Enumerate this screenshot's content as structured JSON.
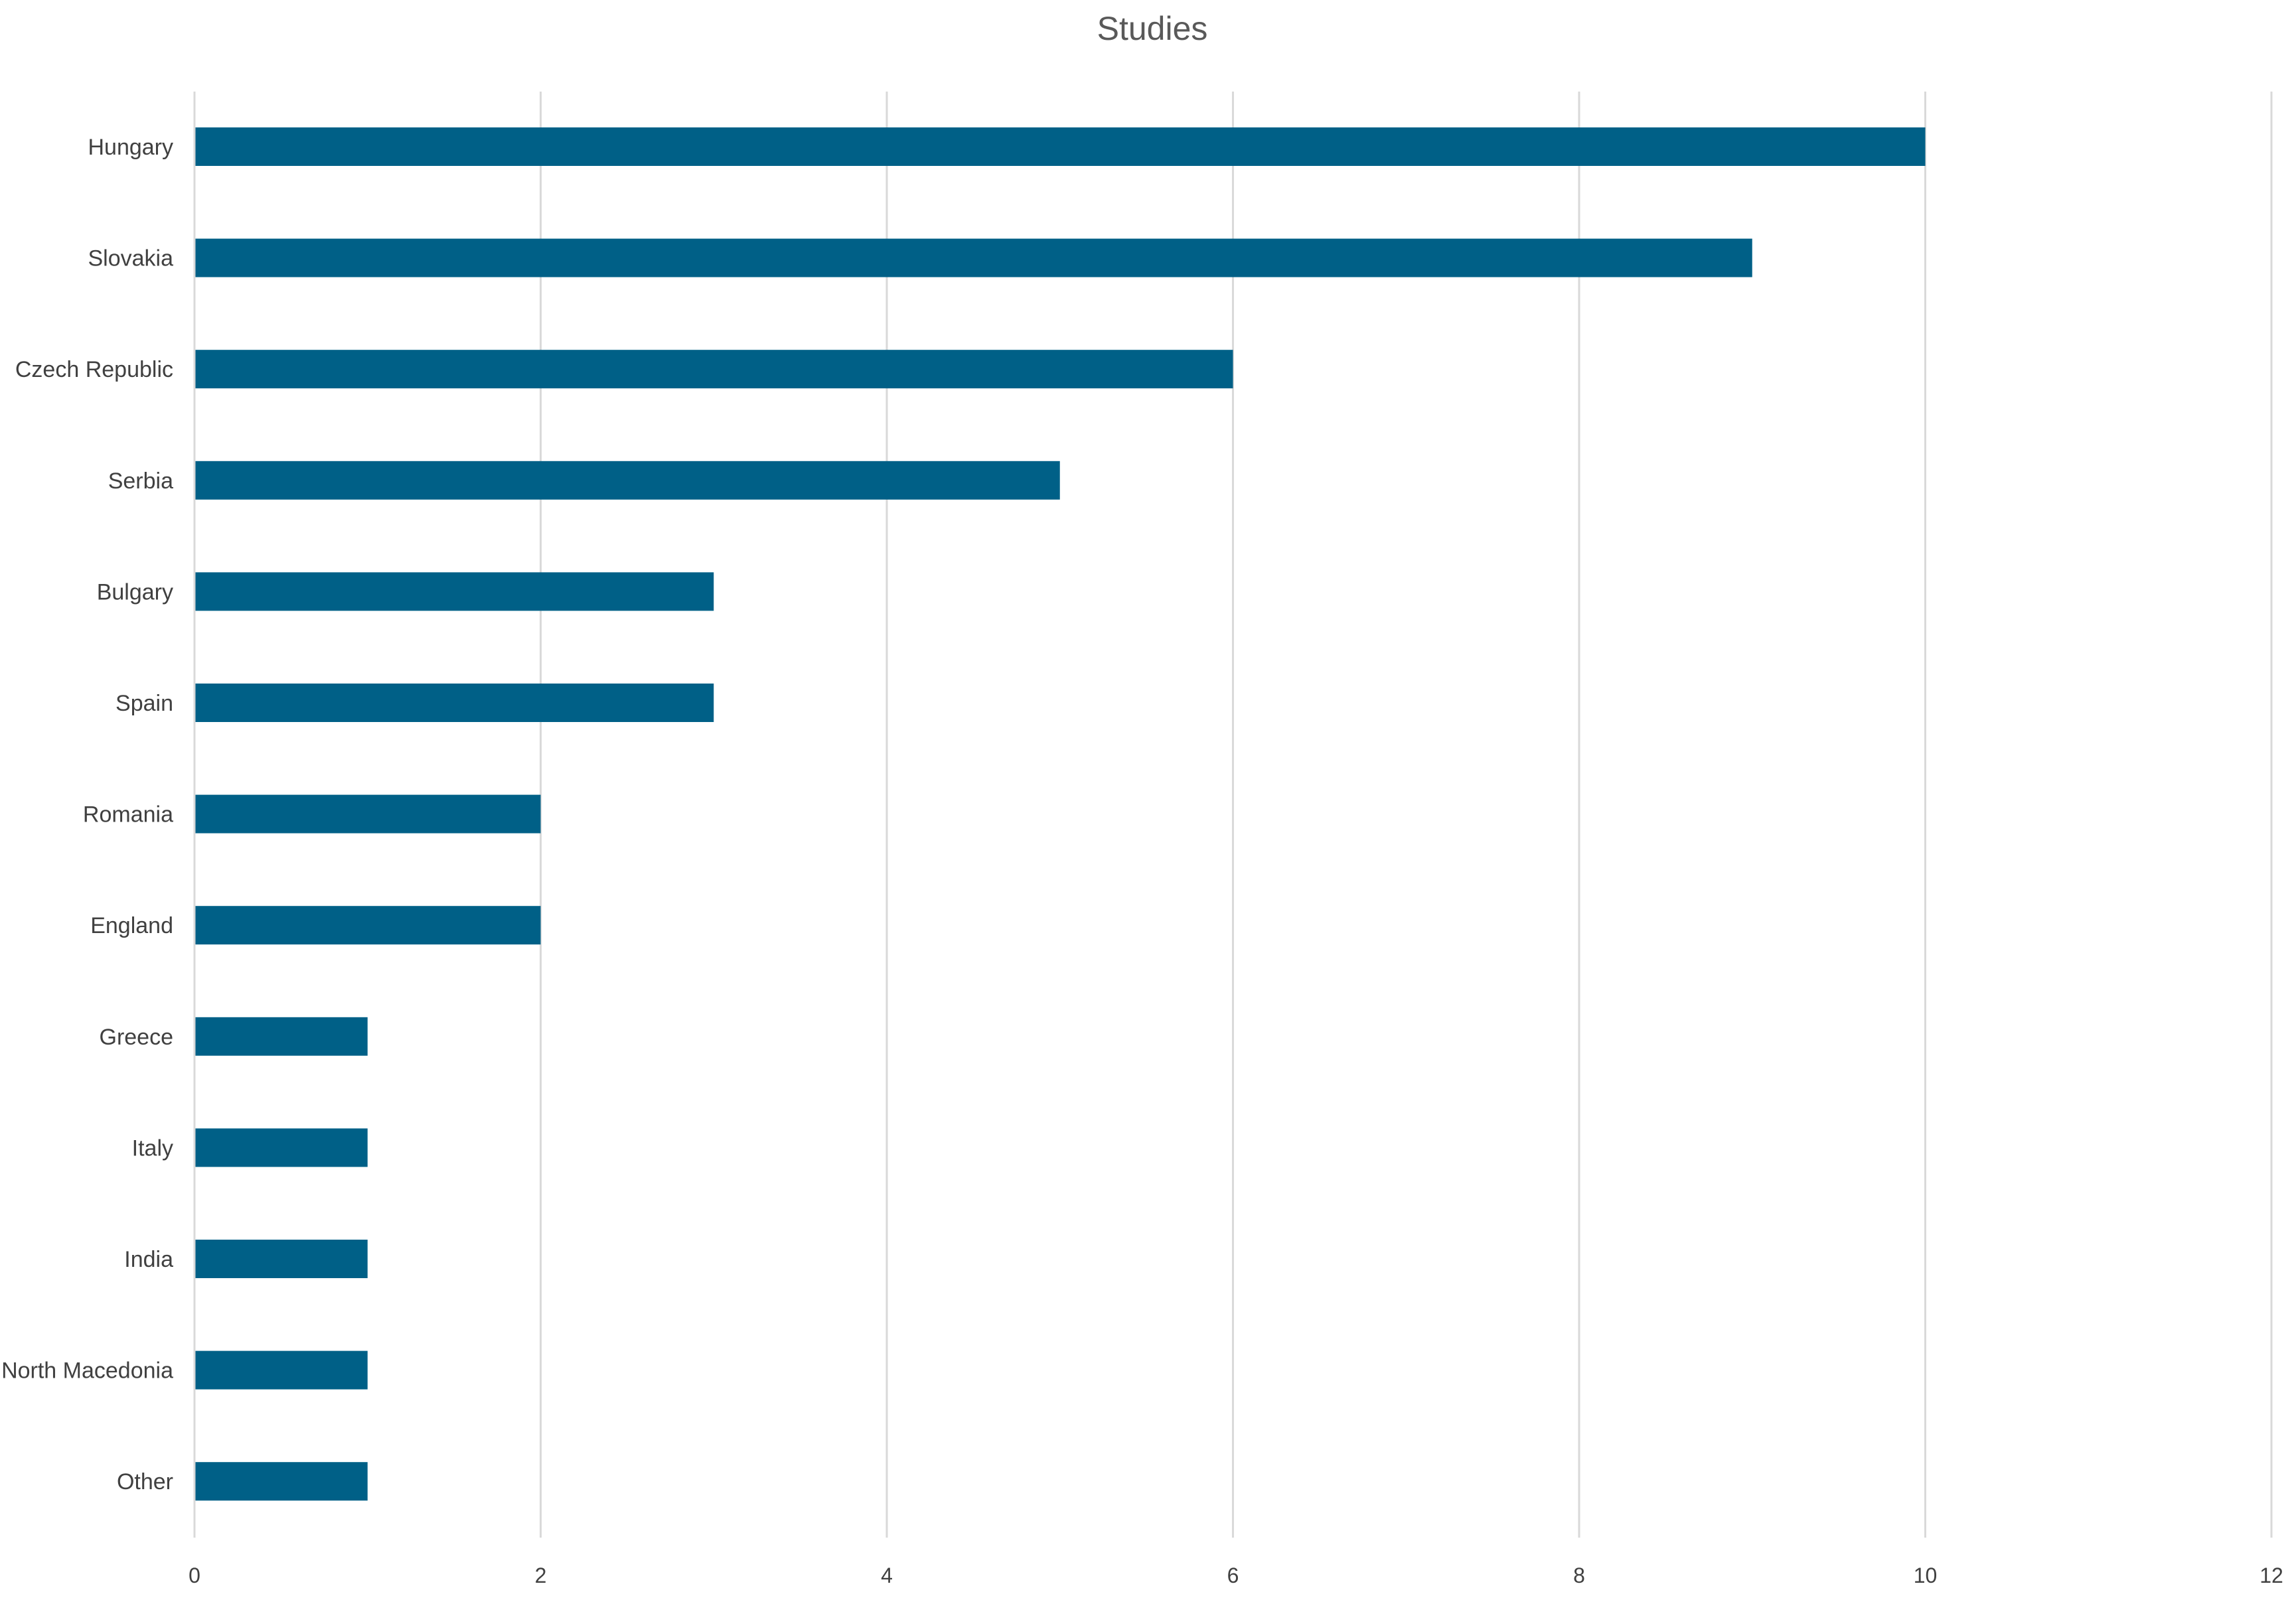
{
  "chart_data": {
    "type": "bar",
    "orientation": "horizontal",
    "title": "Studies",
    "xlabel": "",
    "ylabel": "",
    "categories": [
      "Hungary",
      "Slovakia",
      "Czech Republic",
      "Serbia",
      "Bulgary",
      "Spain",
      "Romania",
      "England",
      "Greece",
      "Italy",
      "India",
      "North Macedonia",
      "Other"
    ],
    "values": [
      10,
      9,
      6,
      5,
      3,
      3,
      2,
      2,
      1,
      1,
      1,
      1,
      1
    ],
    "xlim": [
      0,
      12
    ],
    "xticks": [
      0,
      2,
      4,
      6,
      8,
      10,
      12
    ],
    "grid": "vertical",
    "legend": "none",
    "bar_color": "#006087",
    "grid_color": "#d9d9d9"
  }
}
